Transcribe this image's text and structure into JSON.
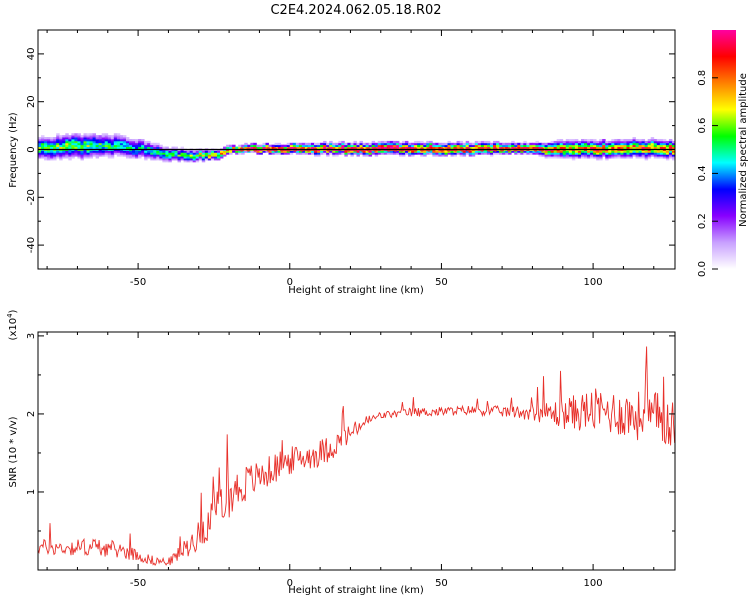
{
  "figure": {
    "title": "C2E4.2024.062.05.18.R02"
  },
  "colors": {
    "snr_line": "#e8312b",
    "ridge": "#e8312b",
    "axis": "#000000"
  },
  "chart_data": [
    {
      "type": "heatmap",
      "name": "spectrogram",
      "xlabel": "Height of straight line (km)",
      "ylabel": "Frequency (Hz)",
      "xlim": [
        -83,
        127
      ],
      "ylim": [
        -50,
        50
      ],
      "xticks": [
        -50,
        0,
        50,
        100
      ],
      "xtick_labels": [
        "-50",
        "0",
        "50",
        "100"
      ],
      "yticks": [
        40,
        20,
        0,
        -20,
        -40
      ],
      "ytick_labels": [
        "40",
        "20",
        "0",
        "-20",
        "-40"
      ],
      "colorbar": {
        "label": "Normalized spectral amplitude",
        "range": [
          0,
          1
        ],
        "ticks": [
          "0.0",
          "0.2",
          "0.4",
          "0.6",
          "0.8"
        ],
        "tick_values": [
          0,
          0.2,
          0.4,
          0.6,
          0.8
        ],
        "colormap": [
          "#ffffff",
          "#c8a0ff",
          "#8800ff",
          "#0000ff",
          "#00ffff",
          "#00ff00",
          "#ffff00",
          "#ff8000",
          "#ff0000",
          "#ff00a0"
        ]
      },
      "signal_track": [
        {
          "x": -83,
          "f_center": 0,
          "spread": 4.5,
          "amp": 0.55
        },
        {
          "x": -70,
          "f_center": 1,
          "spread": 5,
          "amp": 0.6
        },
        {
          "x": -60,
          "f_center": 1.5,
          "spread": 4.5,
          "amp": 0.5
        },
        {
          "x": -50,
          "f_center": 0,
          "spread": 4,
          "amp": 0.45
        },
        {
          "x": -42,
          "f_center": -2,
          "spread": 3,
          "amp": 0.5
        },
        {
          "x": -35,
          "f_center": -3,
          "spread": 2.5,
          "amp": 0.55
        },
        {
          "x": -25,
          "f_center": -2.5,
          "spread": 2,
          "amp": 0.7
        },
        {
          "x": -18,
          "f_center": 0,
          "spread": 1.5,
          "amp": 0.95
        },
        {
          "x": 0,
          "f_center": 0,
          "spread": 2,
          "amp": 0.95
        },
        {
          "x": 30,
          "f_center": 0,
          "spread": 2.5,
          "amp": 0.95
        },
        {
          "x": 60,
          "f_center": 0,
          "spread": 2.5,
          "amp": 0.9
        },
        {
          "x": 78,
          "f_center": 0,
          "spread": 2,
          "amp": 0.9
        },
        {
          "x": 90,
          "f_center": 0,
          "spread": 3.5,
          "amp": 0.8
        },
        {
          "x": 110,
          "f_center": 0,
          "spread": 3.5,
          "amp": 0.8
        },
        {
          "x": 127,
          "f_center": 0,
          "spread": 3.5,
          "amp": 0.8
        }
      ]
    },
    {
      "type": "line",
      "name": "snr",
      "xlabel": "Height of straight line (km)",
      "ylabel": "SNR (10 * v/v)",
      "y_scale_note": "(x10",
      "y_scale_exp": "4",
      "y_scale_close": ")",
      "xlim": [
        -83,
        127
      ],
      "ylim": [
        0,
        3.05
      ],
      "xticks": [
        -50,
        0,
        50,
        100
      ],
      "xtick_labels": [
        "-50",
        "0",
        "50",
        "100"
      ],
      "yticks": [
        1,
        2,
        3
      ],
      "ytick_labels": [
        "1",
        "2",
        "3"
      ],
      "series": [
        {
          "name": "SNR",
          "x": [
            -83,
            -75,
            -65,
            -55,
            -45,
            -40,
            -35,
            -30,
            -25,
            -20,
            -15,
            -10,
            -5,
            0,
            5,
            10,
            15,
            20,
            25,
            30,
            35,
            40,
            50,
            60,
            70,
            80,
            90,
            100,
            110,
            120,
            127
          ],
          "mean": [
            0.3,
            0.28,
            0.3,
            0.25,
            0.12,
            0.1,
            0.25,
            0.45,
            0.7,
            0.95,
            1.1,
            1.2,
            1.3,
            1.4,
            1.45,
            1.5,
            1.6,
            1.75,
            1.9,
            1.98,
            2.0,
            2.02,
            2.03,
            2.05,
            2.03,
            2.02,
            2.0,
            2.05,
            2.0,
            1.95,
            1.9
          ],
          "noise": [
            0.1,
            0.1,
            0.12,
            0.1,
            0.06,
            0.05,
            0.12,
            0.18,
            0.25,
            0.28,
            0.25,
            0.2,
            0.2,
            0.18,
            0.17,
            0.18,
            0.16,
            0.12,
            0.08,
            0.05,
            0.05,
            0.06,
            0.06,
            0.06,
            0.07,
            0.1,
            0.2,
            0.28,
            0.3,
            0.35,
            0.35
          ]
        }
      ]
    }
  ]
}
